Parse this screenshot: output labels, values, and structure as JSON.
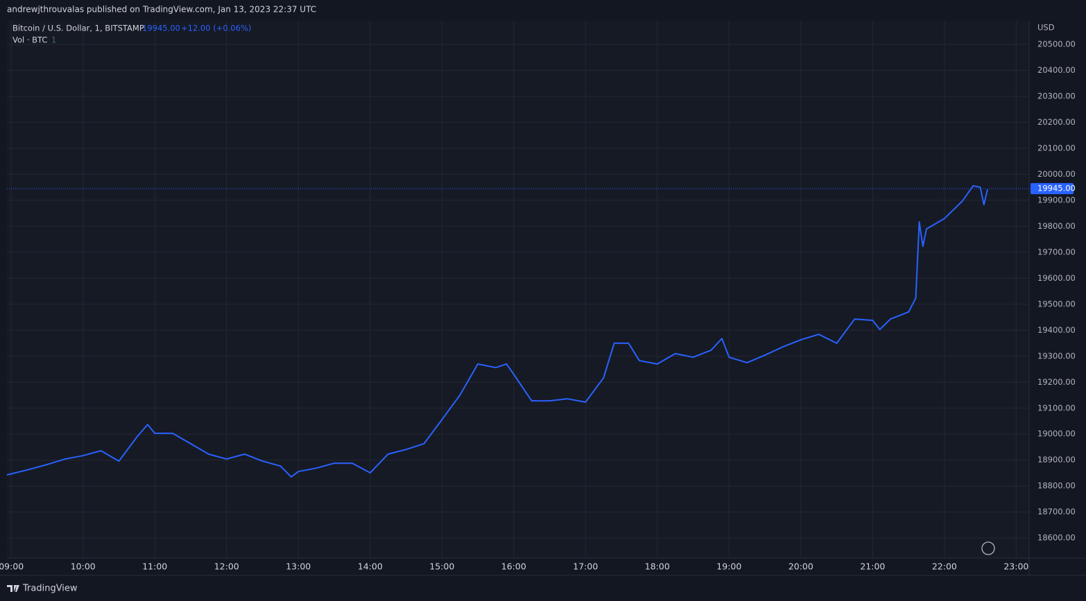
{
  "header": {
    "text": "andrewjthrouvalas published on TradingView.com, Jan 13, 2023 22:37 UTC"
  },
  "footer": {
    "brand": "TradingView"
  },
  "chart_data": {
    "type": "line",
    "symbol": "Bitcoin / U.S. Dollar, 1, BITSTAMP",
    "change": "+12.00 (+0.06%)",
    "volume_legend": "Vol · BTC",
    "volume_legend_value": "1",
    "y_unit": "USD",
    "last_price": {
      "value": 19945,
      "label": "19945.00"
    },
    "color": "#2962ff",
    "grid": true,
    "xlim": [
      8.94,
      23.18
    ],
    "ylim": [
      18523,
      20591
    ],
    "xticks": [
      {
        "value": 9,
        "label": "09:00"
      },
      {
        "value": 10,
        "label": "10:00"
      },
      {
        "value": 11,
        "label": "11:00"
      },
      {
        "value": 12,
        "label": "12:00"
      },
      {
        "value": 13,
        "label": "13:00"
      },
      {
        "value": 14,
        "label": "14:00"
      },
      {
        "value": 15,
        "label": "15:00"
      },
      {
        "value": 16,
        "label": "16:00"
      },
      {
        "value": 17,
        "label": "17:00"
      },
      {
        "value": 18,
        "label": "18:00"
      },
      {
        "value": 19,
        "label": "19:00"
      },
      {
        "value": 20,
        "label": "20:00"
      },
      {
        "value": 21,
        "label": "21:00"
      },
      {
        "value": 22,
        "label": "22:00"
      },
      {
        "value": 23,
        "label": "23:00"
      }
    ],
    "yticks": [
      {
        "value": 18600,
        "label": "18600.00"
      },
      {
        "value": 18700,
        "label": "18700.00"
      },
      {
        "value": 18800,
        "label": "18800.00"
      },
      {
        "value": 18900,
        "label": "18900.00"
      },
      {
        "value": 19000,
        "label": "19000.00"
      },
      {
        "value": 19100,
        "label": "19100.00"
      },
      {
        "value": 19200,
        "label": "19200.00"
      },
      {
        "value": 19300,
        "label": "19300.00"
      },
      {
        "value": 19400,
        "label": "19400.00"
      },
      {
        "value": 19500,
        "label": "19500.00"
      },
      {
        "value": 19600,
        "label": "19600.00"
      },
      {
        "value": 19700,
        "label": "19700.00"
      },
      {
        "value": 19800,
        "label": "19800.00"
      },
      {
        "value": 19900,
        "label": "19900.00"
      },
      {
        "value": 20000,
        "label": "20000.00"
      },
      {
        "value": 20100,
        "label": "20100.00"
      },
      {
        "value": 20200,
        "label": "20200.00"
      },
      {
        "value": 20300,
        "label": "20300.00"
      },
      {
        "value": 20400,
        "label": "20400.00"
      },
      {
        "value": 20500,
        "label": "20500.00"
      }
    ],
    "x": [
      8.94,
      9.25,
      9.5,
      9.75,
      10.0,
      10.25,
      10.5,
      10.75,
      10.9,
      11.0,
      11.25,
      11.5,
      11.75,
      12.0,
      12.25,
      12.5,
      12.75,
      12.9,
      13.0,
      13.25,
      13.5,
      13.75,
      14.0,
      14.25,
      14.5,
      14.75,
      15.0,
      15.25,
      15.5,
      15.75,
      15.9,
      16.0,
      16.25,
      16.5,
      16.75,
      17.0,
      17.25,
      17.4,
      17.6,
      17.75,
      18.0,
      18.25,
      18.5,
      18.75,
      18.9,
      19.0,
      19.25,
      19.5,
      19.75,
      20.0,
      20.25,
      20.5,
      20.75,
      21.0,
      21.1,
      21.25,
      21.5,
      21.6,
      21.65,
      21.7,
      21.75,
      22.0,
      22.25,
      22.4,
      22.5,
      22.55,
      22.6
    ],
    "values": [
      18843,
      18864,
      18883,
      18904,
      18917,
      18936,
      18896,
      18989,
      19037,
      19003,
      19003,
      18963,
      18923,
      18904,
      18923,
      18896,
      18877,
      18835,
      18856,
      18869,
      18888,
      18888,
      18851,
      18923,
      18941,
      18963,
      19056,
      19150,
      19270,
      19256,
      19270,
      19230,
      19128,
      19128,
      19136,
      19123,
      19216,
      19350,
      19350,
      19283,
      19270,
      19310,
      19296,
      19323,
      19368,
      19296,
      19275,
      19304,
      19336,
      19363,
      19384,
      19350,
      19443,
      19438,
      19403,
      19443,
      19470,
      19523,
      19817,
      19723,
      19790,
      19830,
      19897,
      19956,
      19950,
      19883,
      19942
    ]
  }
}
